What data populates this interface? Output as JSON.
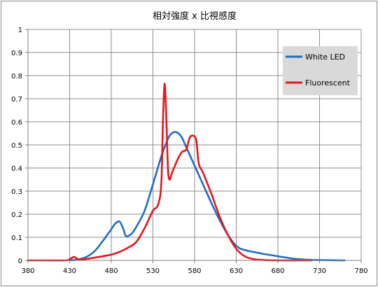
{
  "chart_data": {
    "type": "line",
    "title": "相対強度 x 比視感度",
    "xlabel": "",
    "ylabel": "",
    "xlim": [
      380,
      780
    ],
    "ylim": [
      0,
      1
    ],
    "x_ticks": [
      "380",
      "430",
      "480",
      "530",
      "580",
      "630",
      "680",
      "730",
      "780"
    ],
    "y_ticks": [
      "0",
      "0.1",
      "0.2",
      "0.3",
      "0.4",
      "0.5",
      "0.6",
      "0.7",
      "0.8",
      "0.9",
      "1"
    ],
    "grid": true,
    "legend_position": "right",
    "series": [
      {
        "name": "White LED",
        "color": "#1f6fc1",
        "points": [
          [
            430,
            0
          ],
          [
            440,
            0.004
          ],
          [
            450,
            0.015
          ],
          [
            460,
            0.04
          ],
          [
            470,
            0.085
          ],
          [
            480,
            0.135
          ],
          [
            485,
            0.16
          ],
          [
            490,
            0.168
          ],
          [
            494,
            0.14
          ],
          [
            497,
            0.108
          ],
          [
            500,
            0.105
          ],
          [
            505,
            0.118
          ],
          [
            510,
            0.145
          ],
          [
            520,
            0.215
          ],
          [
            530,
            0.33
          ],
          [
            540,
            0.45
          ],
          [
            545,
            0.5
          ],
          [
            550,
            0.54
          ],
          [
            555,
            0.555
          ],
          [
            560,
            0.552
          ],
          [
            565,
            0.53
          ],
          [
            570,
            0.49
          ],
          [
            580,
            0.41
          ],
          [
            590,
            0.33
          ],
          [
            600,
            0.25
          ],
          [
            610,
            0.175
          ],
          [
            620,
            0.11
          ],
          [
            630,
            0.063
          ],
          [
            640,
            0.045
          ],
          [
            660,
            0.03
          ],
          [
            680,
            0.018
          ],
          [
            700,
            0.007
          ],
          [
            720,
            0.002
          ],
          [
            740,
            0.001
          ],
          [
            760,
            0
          ]
        ]
      },
      {
        "name": "Fluorescent",
        "color": "#e8141b",
        "points": [
          [
            380,
            0
          ],
          [
            400,
            0
          ],
          [
            425,
            0
          ],
          [
            430,
            0.005
          ],
          [
            435,
            0.015
          ],
          [
            438,
            0.01
          ],
          [
            442,
            0.003
          ],
          [
            450,
            0.006
          ],
          [
            460,
            0.012
          ],
          [
            470,
            0.018
          ],
          [
            480,
            0.025
          ],
          [
            490,
            0.037
          ],
          [
            500,
            0.055
          ],
          [
            510,
            0.08
          ],
          [
            520,
            0.14
          ],
          [
            530,
            0.215
          ],
          [
            536,
            0.24
          ],
          [
            540,
            0.33
          ],
          [
            542,
            0.6
          ],
          [
            544,
            0.765
          ],
          [
            546,
            0.62
          ],
          [
            548,
            0.4
          ],
          [
            550,
            0.35
          ],
          [
            553,
            0.38
          ],
          [
            560,
            0.44
          ],
          [
            565,
            0.47
          ],
          [
            570,
            0.48
          ],
          [
            574,
            0.53
          ],
          [
            578,
            0.54
          ],
          [
            582,
            0.52
          ],
          [
            585,
            0.42
          ],
          [
            590,
            0.38
          ],
          [
            600,
            0.29
          ],
          [
            610,
            0.19
          ],
          [
            620,
            0.11
          ],
          [
            630,
            0.05
          ],
          [
            640,
            0.018
          ],
          [
            650,
            0.006
          ],
          [
            660,
            0.002
          ],
          [
            680,
            0
          ],
          [
            720,
            0
          ]
        ]
      }
    ]
  }
}
